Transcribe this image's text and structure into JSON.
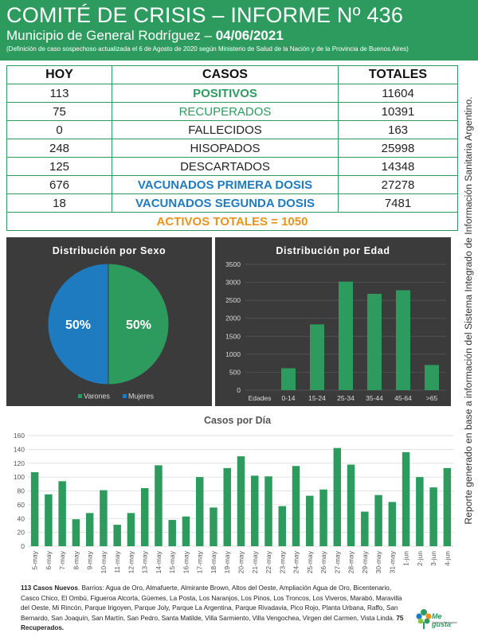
{
  "header": {
    "title": "COMITÉ DE CRISIS – INFORME Nº 436",
    "subtitle_prefix": "Municipio de General Rodríguez – ",
    "date": "04/06/2021",
    "note": "(Definición de caso sospechoso actualizada el 6 de Agosto de 2020 según Ministerio de Salud de la Nación y de la Provincia de Buenos Aires)"
  },
  "table": {
    "headers": {
      "hoy": "HOY",
      "casos": "CASOS",
      "totales": "TOTALES"
    },
    "rows": [
      {
        "hoy": "113",
        "casos": "POSITIVOS",
        "totales": "11604"
      },
      {
        "hoy": "75",
        "casos": "RECUPERADOS",
        "totales": "10391"
      },
      {
        "hoy": "0",
        "casos": "FALLECIDOS",
        "totales": "163"
      },
      {
        "hoy": "248",
        "casos": "HISOPADOS",
        "totales": "25998"
      },
      {
        "hoy": "125",
        "casos": "DESCARTADOS",
        "totales": "14348"
      },
      {
        "hoy": "676",
        "casos": "VACUNADOS PRIMERA DOSIS",
        "totales": "27278"
      },
      {
        "hoy": "18",
        "casos": "VACUNADOS SEGUNDA DOSIS",
        "totales": "7481"
      }
    ],
    "activos": "ACTIVOS TOTALES = 1050"
  },
  "side_text": "Reporte generado en base a información del Sistema Integrado de Información Sanitaria Argentino.",
  "colors": {
    "green": "#2e9b5e",
    "blue": "#1f7bbf",
    "orange": "#e8931e",
    "panel": "#3b3b3b"
  },
  "chart_data": [
    {
      "type": "pie",
      "title": "Distribución por Sexo",
      "labels": [
        "Varones",
        "Mujeres"
      ],
      "values": [
        50,
        50
      ],
      "value_labels": [
        "50%",
        "50%"
      ],
      "colors": [
        "#2e9b5e",
        "#1f7bbf"
      ],
      "legend": "bottom"
    },
    {
      "type": "bar",
      "title": "Distribución por Edad",
      "xlabel": "Edades",
      "categories": [
        "0-14",
        "15-24",
        "25-34",
        "35-44",
        "45-64",
        ">65"
      ],
      "values": [
        610,
        1830,
        3020,
        2680,
        2780,
        700
      ],
      "ylim": [
        0,
        3500
      ],
      "yticks": [
        "0",
        "500",
        "1000",
        "1500",
        "2000",
        "2500",
        "3000",
        "3500"
      ],
      "grid": true,
      "color": "#2e9b5e"
    },
    {
      "type": "bar",
      "title": "Casos por Día",
      "categories": [
        "5-may",
        "6-may",
        "7-may",
        "8-may",
        "9-may",
        "10-may",
        "11-may",
        "12-may",
        "13-may",
        "14-may",
        "15-may",
        "16-may",
        "17-may",
        "18-may",
        "19-may",
        "20-may",
        "21-may",
        "22-may",
        "23-may",
        "24-may",
        "25-may",
        "26-may",
        "27-may",
        "28-may",
        "29-may",
        "30-may",
        "31-may",
        "1-jun",
        "2-jun",
        "3-jun",
        "4-jun"
      ],
      "values": [
        107,
        75,
        94,
        39,
        48,
        81,
        31,
        48,
        84,
        117,
        38,
        43,
        100,
        56,
        113,
        130,
        102,
        101,
        58,
        116,
        73,
        82,
        142,
        118,
        50,
        74,
        64,
        136,
        100,
        85,
        113
      ],
      "ylim": [
        0,
        160
      ],
      "yticks": [
        "0",
        "20",
        "40",
        "60",
        "80",
        "100",
        "120",
        "140",
        "160"
      ],
      "grid": true,
      "color": "#2e9b5e"
    }
  ],
  "footer": {
    "lead": "113 Casos Nuevos",
    "barrios": ". Barrios: Agua de Oro, Almafuerte, Almirante Brown, Altos del Oeste, Ampliación Agua de Oro, Bicentenario, Casco Chico, El Ombú, Figueroa Alcorta, Güemes, La Posta, Los Naranjos, Los Pinos, Los Troncos, Los Viveros, Marabó, Maravilla del Oeste, Mi Rincón, Parque Irigoyen, Parque Joly, Parque La Argentina, Parque Rivadavia, Pico Rojo, Planta Urbana, Raffo, San Bernardo, San Joaquín, San Martín, San Pedro, Santa Matilde, Villa Sarmiento, Villa Vengochea, Virgen del Carmen, Vista Linda. ",
    "recuperados": "75 Recuperados."
  },
  "logo": {
    "text": "Me gusta",
    "sub": "General Rodríguez",
    "icon": "flower-logo-icon"
  }
}
